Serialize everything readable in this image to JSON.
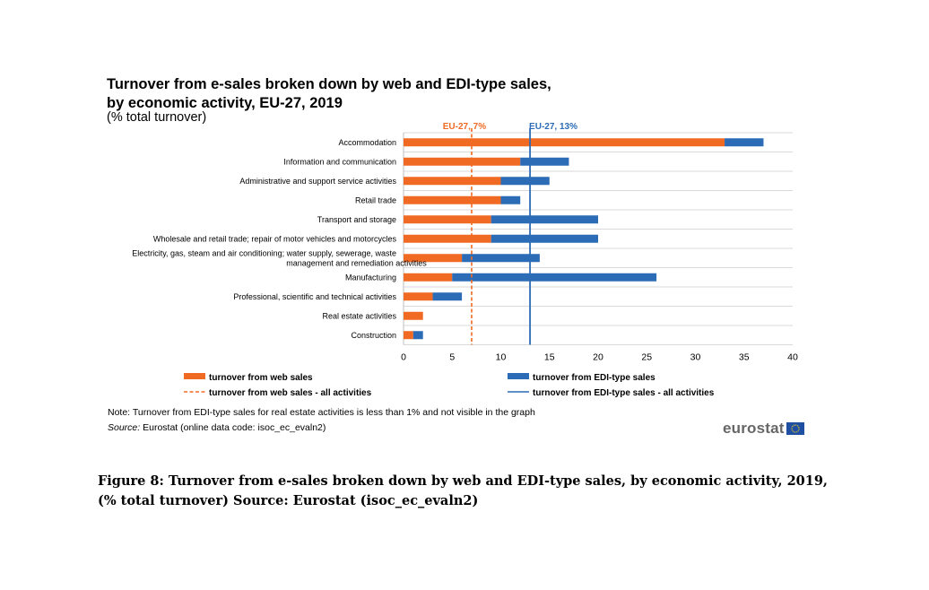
{
  "title_line1": "Turnover from e-sales broken down by web and EDI-type sales,",
  "title_line2": "by economic activity, EU-27, 2019",
  "subtitle": "(% total turnover)",
  "note": "Note: Turnover  from EDI-type sales for real estate activities is less than 1% and not visible in the graph",
  "source_prefix": "Source:",
  "source_text": " Eurostat (online data code: isoc_ec_evaln2)",
  "logo": "eurostat",
  "caption": "Figure 8: Turnover from e-sales broken down by web and EDI-type sales, by economic activity, 2019, (% total turnover) Source: Eurostat (isoc_ec_evaln2)",
  "colors": {
    "web": "#f06a24",
    "edi": "#2c6bb5"
  },
  "chart_data": {
    "type": "bar",
    "orientation": "horizontal",
    "stacked": true,
    "categories": [
      "Accommodation",
      "Information and communication",
      "Administrative and support service activities",
      "Retail trade",
      "Transport and storage",
      "Wholesale and retail trade; repair of motor vehicles and motorcycles",
      "Electricity, gas, steam and air conditioning; water supply, sewerage, waste management and remediation activities",
      "Manufacturing",
      "Professional, scientific and technical activities",
      "Real estate activities",
      "Construction"
    ],
    "category_lines": [
      [
        "Accommodation"
      ],
      [
        "Information and communication"
      ],
      [
        "Administrative and support service activities"
      ],
      [
        "Retail trade"
      ],
      [
        "Transport and storage"
      ],
      [
        "Wholesale and retail trade; repair of motor vehicles and motorcycles"
      ],
      [
        "Electricity, gas, steam and air conditioning; water supply, sewerage, waste",
        "management and remediation activities"
      ],
      [
        "Manufacturing"
      ],
      [
        "Professional, scientific and technical activities"
      ],
      [
        "Real estate activities"
      ],
      [
        "Construction"
      ]
    ],
    "series": [
      {
        "name": "turnover from web sales",
        "values": [
          33,
          12,
          10,
          10,
          9,
          9,
          6,
          5,
          3,
          2,
          1
        ]
      },
      {
        "name": "turnover from EDI-type sales",
        "values": [
          4,
          5,
          5,
          2,
          11,
          11,
          8,
          21,
          3,
          0,
          1
        ]
      }
    ],
    "reference_lines": [
      {
        "name": "turnover from web sales - all activities",
        "value": 7,
        "label": "EU-27, 7%",
        "style": "dashed"
      },
      {
        "name": "turnover from EDI-type sales  - all activities",
        "value": 13,
        "label": "EU-27, 13%",
        "style": "solid"
      }
    ],
    "xlim": [
      0,
      40
    ],
    "xticks": [
      "0",
      "5",
      "10",
      "15",
      "20",
      "25",
      "30",
      "35",
      "40"
    ],
    "legend": [
      {
        "label": "turnover from web sales",
        "kind": "bar",
        "series": 0
      },
      {
        "label": "turnover from EDI-type sales",
        "kind": "bar",
        "series": 1
      },
      {
        "label": "turnover from web sales - all activities",
        "kind": "dashed",
        "series": 0
      },
      {
        "label": "turnover from EDI-type sales  - all activities",
        "kind": "solid",
        "series": 1
      }
    ],
    "legend_position": "bottom",
    "grid": true
  }
}
